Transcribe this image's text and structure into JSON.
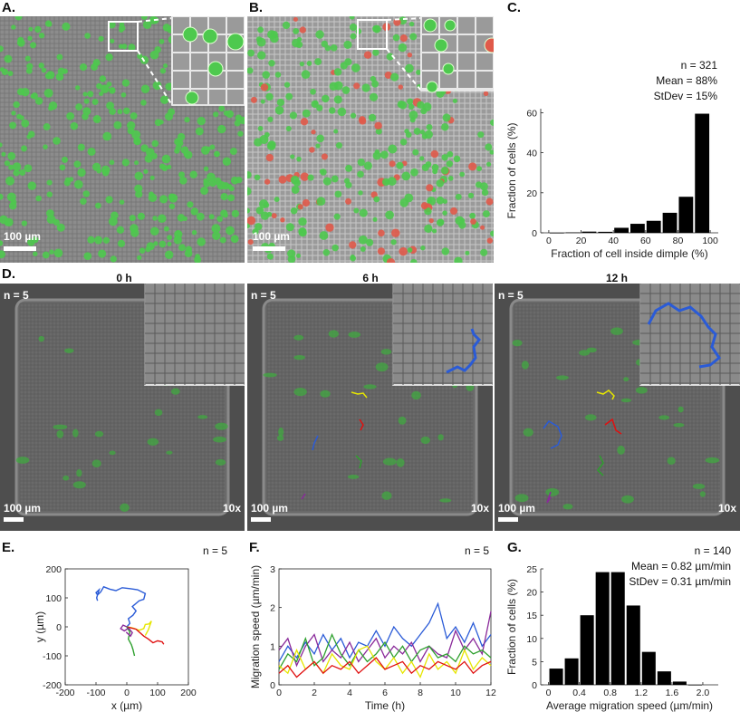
{
  "panels": {
    "a": {
      "label": "A.",
      "scale": "100 µm"
    },
    "b": {
      "label": "B.",
      "scale": "100 µm"
    },
    "c": {
      "label": "C.",
      "n": "n = 321",
      "mean": "Mean = 88%",
      "stdev": "StDev = 15%"
    },
    "d": {
      "label": "D.",
      "times": [
        "0 h",
        "6 h",
        "12 h"
      ],
      "n": "n = 5",
      "scale": "100 µm",
      "mag": "10x"
    },
    "e": {
      "label": "E.",
      "n": "n = 5"
    },
    "f": {
      "label": "F.",
      "n": "n = 5"
    },
    "g": {
      "label": "G.",
      "n": "n = 140",
      "mean": "Mean = 0.82 µm/min",
      "stdev": "StDev = 0.31 µm/min"
    }
  },
  "colors": {
    "track_blue": "#2a5bd7",
    "track_yellow": "#e6e600",
    "track_red": "#e01010",
    "track_green": "#2ea02e",
    "track_purple": "#8a2a9a",
    "cell_green": "#4ec94e",
    "cell_red": "#e05a4a"
  },
  "chart_data": [
    {
      "id": "c",
      "type": "bar",
      "xlabel": "Fraction of cell inside dimple (%)",
      "ylabel": "Fraction of cells (%)",
      "xlim": [
        -5,
        105
      ],
      "ylim": [
        0,
        62
      ],
      "xticks": [
        "0",
        "20",
        "40",
        "60",
        "80",
        "100"
      ],
      "xtick_values": [
        0,
        20,
        40,
        60,
        80,
        100
      ],
      "yticks": [
        "0",
        "20",
        "40",
        "60"
      ],
      "ytick_values": [
        0,
        20,
        40,
        60
      ],
      "x": [
        5,
        15,
        25,
        35,
        45,
        55,
        65,
        75,
        85,
        95
      ],
      "values": [
        0,
        0.2,
        0.6,
        0.5,
        2.5,
        4.5,
        6,
        10,
        18,
        59.5
      ]
    },
    {
      "id": "e",
      "type": "line",
      "xlabel": "x (µm)",
      "ylabel": "y (µm)",
      "xlim": [
        -200,
        200
      ],
      "ylim": [
        -200,
        200
      ],
      "xticks": [
        "-200",
        "-100",
        "0",
        "100",
        "200"
      ],
      "xtick_values": [
        -200,
        -100,
        0,
        100,
        200
      ],
      "yticks": [
        "-200",
        "-100",
        "0",
        "100",
        "200"
      ],
      "ytick_values": [
        -200,
        -100,
        0,
        100,
        200
      ],
      "series": [
        {
          "name": "blue",
          "color": "#2a5bd7",
          "points": [
            [
              0,
              0
            ],
            [
              10,
              12
            ],
            [
              5,
              28
            ],
            [
              20,
              40
            ],
            [
              30,
              55
            ],
            [
              18,
              70
            ],
            [
              40,
              90
            ],
            [
              55,
              95
            ],
            [
              60,
              115
            ],
            [
              35,
              128
            ],
            [
              10,
              132
            ],
            [
              -15,
              135
            ],
            [
              -35,
              125
            ],
            [
              -55,
              130
            ],
            [
              -75,
              138
            ],
            [
              -85,
              120
            ],
            [
              -95,
              110
            ],
            [
              -100,
              118
            ],
            [
              -90,
              128
            ],
            [
              -98,
              100
            ],
            [
              -95,
              90
            ]
          ]
        },
        {
          "name": "yellow",
          "color": "#e6e600",
          "points": [
            [
              0,
              0
            ],
            [
              20,
              -4
            ],
            [
              40,
              -12
            ],
            [
              55,
              -6
            ],
            [
              60,
              8
            ],
            [
              72,
              10
            ],
            [
              80,
              20
            ],
            [
              70,
              -10
            ],
            [
              60,
              -30
            ],
            [
              65,
              -20
            ]
          ]
        },
        {
          "name": "red",
          "color": "#e01010",
          "points": [
            [
              0,
              0
            ],
            [
              30,
              -8
            ],
            [
              55,
              -32
            ],
            [
              70,
              -42
            ],
            [
              85,
              -55
            ],
            [
              100,
              -48
            ],
            [
              115,
              -52
            ],
            [
              120,
              -60
            ]
          ]
        },
        {
          "name": "green",
          "color": "#2ea02e",
          "points": [
            [
              0,
              0
            ],
            [
              10,
              -18
            ],
            [
              5,
              -42
            ],
            [
              15,
              -62
            ],
            [
              20,
              -78
            ],
            [
              25,
              -100
            ]
          ]
        },
        {
          "name": "purple",
          "color": "#8a2a9a",
          "points": [
            [
              0,
              0
            ],
            [
              -12,
              6
            ],
            [
              -20,
              -6
            ],
            [
              -8,
              -14
            ],
            [
              6,
              -4
            ],
            [
              18,
              -20
            ],
            [
              12,
              -32
            ],
            [
              -2,
              -18
            ]
          ]
        }
      ]
    },
    {
      "id": "f",
      "type": "line",
      "xlabel": "Time (h)",
      "ylabel": "Migration speed (µm/min)",
      "xlim": [
        0,
        12
      ],
      "ylim": [
        0,
        3
      ],
      "xticks": [
        "0",
        "2",
        "4",
        "6",
        "8",
        "10",
        "12"
      ],
      "xtick_values": [
        0,
        2,
        4,
        6,
        8,
        10,
        12
      ],
      "yticks": [
        "0",
        "1",
        "2",
        "3"
      ],
      "ytick_values": [
        0,
        1,
        2,
        3
      ],
      "series": [
        {
          "name": "blue",
          "color": "#2a5bd7",
          "x": [
            0,
            0.5,
            1,
            1.5,
            2,
            2.5,
            3,
            3.5,
            4,
            4.5,
            5,
            5.5,
            6,
            6.5,
            7,
            7.5,
            8,
            8.5,
            9,
            9.5,
            10,
            10.5,
            11,
            11.5,
            12
          ],
          "values": [
            0.6,
            1.0,
            0.7,
            1.1,
            0.8,
            1.3,
            0.9,
            1.2,
            0.7,
            1.1,
            1.0,
            1.4,
            1.0,
            1.5,
            1.2,
            1.0,
            1.3,
            1.6,
            2.1,
            1.2,
            1.5,
            1.1,
            1.6,
            1.0,
            1.3
          ]
        },
        {
          "name": "purple",
          "color": "#8a2a9a",
          "x": [
            0,
            0.5,
            1,
            1.5,
            2,
            2.5,
            3,
            3.5,
            4,
            4.5,
            5,
            5.5,
            6,
            6.5,
            7,
            7.5,
            8,
            8.5,
            9,
            9.5,
            10,
            10.5,
            11,
            11.5,
            12
          ],
          "values": [
            0.9,
            1.2,
            0.5,
            1.0,
            1.3,
            0.6,
            0.9,
            0.7,
            1.1,
            0.6,
            0.9,
            1.2,
            0.7,
            1.0,
            0.8,
            1.1,
            0.6,
            1.0,
            0.8,
            0.7,
            1.4,
            0.9,
            1.2,
            0.8,
            1.9
          ]
        },
        {
          "name": "green",
          "color": "#2ea02e",
          "x": [
            0,
            0.5,
            1,
            1.5,
            2,
            2.5,
            3,
            3.5,
            4,
            4.5,
            5,
            5.5,
            6,
            6.5,
            7,
            7.5,
            8,
            8.5,
            9,
            9.5,
            10,
            10.5,
            11,
            11.5,
            12
          ],
          "values": [
            0.4,
            0.8,
            0.6,
            1.2,
            0.5,
            0.7,
            1.3,
            0.8,
            0.5,
            0.9,
            0.6,
            0.8,
            1.1,
            0.7,
            1.0,
            0.6,
            0.9,
            1.0,
            0.7,
            0.8,
            0.6,
            1.0,
            0.8,
            0.9,
            0.7
          ]
        },
        {
          "name": "yellow",
          "color": "#e6e600",
          "x": [
            0,
            0.5,
            1,
            1.5,
            2,
            2.5,
            3,
            3.5,
            4,
            4.5,
            5,
            5.5,
            6,
            6.5,
            7,
            7.5,
            8,
            8.5,
            9,
            9.5,
            10,
            10.5,
            11,
            11.5,
            12
          ],
          "values": [
            0.5,
            0.3,
            0.9,
            0.4,
            0.6,
            0.3,
            0.8,
            0.5,
            0.4,
            0.9,
            1.0,
            0.6,
            0.4,
            0.7,
            0.3,
            0.6,
            0.2,
            0.8,
            0.4,
            0.6,
            0.3,
            0.9,
            0.4,
            0.7,
            0.5
          ]
        },
        {
          "name": "red",
          "color": "#e01010",
          "x": [
            0,
            0.5,
            1,
            1.5,
            2,
            2.5,
            3,
            3.5,
            4,
            4.5,
            5,
            5.5,
            6,
            6.5,
            7,
            7.5,
            8,
            8.5,
            9,
            9.5,
            10,
            10.5,
            11,
            11.5,
            12
          ],
          "values": [
            0.3,
            0.5,
            0.2,
            0.4,
            0.6,
            0.3,
            0.5,
            0.4,
            0.6,
            0.3,
            0.5,
            0.7,
            0.4,
            0.5,
            0.6,
            0.3,
            0.5,
            0.4,
            0.6,
            0.5,
            0.4,
            0.6,
            0.3,
            0.5,
            0.6
          ]
        }
      ]
    },
    {
      "id": "g",
      "type": "bar",
      "xlabel": "Average migration speed (µm/min)",
      "ylabel": "Fraction of cells (%)",
      "xlim": [
        -0.1,
        2.2
      ],
      "ylim": [
        0,
        25
      ],
      "xticks": [
        "0",
        "0.4",
        "0.8",
        "1.2",
        "1.6",
        "2.0"
      ],
      "xtick_values": [
        0,
        0.4,
        0.8,
        1.2,
        1.6,
        2.0
      ],
      "yticks": [
        "0",
        "5",
        "10",
        "15",
        "20",
        "25"
      ],
      "ytick_values": [
        0,
        5,
        10,
        15,
        20,
        25
      ],
      "x": [
        0.1,
        0.3,
        0.5,
        0.7,
        0.9,
        1.1,
        1.3,
        1.5,
        1.7,
        1.9
      ],
      "values": [
        3.5,
        5.7,
        15,
        24.3,
        24.3,
        17.1,
        7.1,
        2.9,
        0.7,
        0
      ]
    }
  ]
}
